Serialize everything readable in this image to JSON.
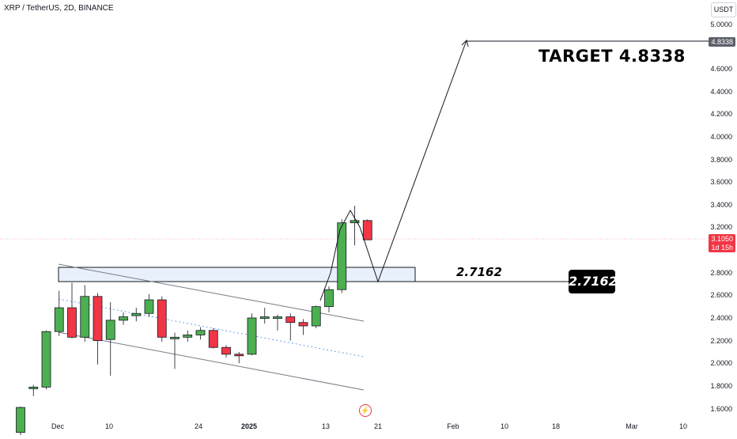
{
  "header": {
    "symbol_title": "XRP / TetherUS, 2D, BINANCE",
    "currency_label": "USDT"
  },
  "price_axis": {
    "ticks": [
      "5.0000",
      "4.6000",
      "4.4000",
      "4.2000",
      "4.0000",
      "3.8000",
      "3.6000",
      "3.4000",
      "3.2000",
      "2.8000",
      "2.6000",
      "2.4000",
      "2.2000",
      "2.0000",
      "1.8000",
      "1.6000"
    ],
    "target_tag": "4.8338",
    "current_price_tag": "3.1050",
    "countdown_tag": "1d 15h"
  },
  "time_axis": {
    "labels": [
      "Dec",
      "10",
      "24",
      "2025",
      "13",
      "21",
      "Feb",
      "10",
      "18",
      "Mar",
      "10"
    ]
  },
  "annotations": {
    "target_text": "TARGET 4.8338",
    "level_label": "2.7162",
    "level_box": "2.7162"
  },
  "colors": {
    "up": "#4caf50",
    "down": "#f23645",
    "outline": "#131722",
    "zone_fill": "#e8f0fc",
    "channel": "#787b86",
    "midline": "#64a0e8",
    "price_line": "#f23645"
  },
  "chart_data": {
    "type": "candlestick",
    "title": "XRP / TetherUS, 2D, BINANCE",
    "y_unit": "USDT",
    "ylim": [
      1.55,
      5.2
    ],
    "candles": [
      {
        "date": "Nov 24",
        "open": 1.4,
        "high": 1.63,
        "low": 1.35,
        "close": 1.62
      },
      {
        "date": "Nov 26",
        "open": 1.8,
        "high": 1.82,
        "low": 1.72,
        "close": 1.8
      },
      {
        "date": "Nov 28",
        "open": 1.8,
        "high": 2.3,
        "low": 1.78,
        "close": 2.29
      },
      {
        "date": "Nov 30",
        "open": 2.29,
        "high": 2.65,
        "low": 2.25,
        "close": 2.5
      },
      {
        "date": "Dec 2",
        "open": 2.5,
        "high": 2.72,
        "low": 2.23,
        "close": 2.24
      },
      {
        "date": "Dec 4",
        "open": 2.24,
        "high": 2.7,
        "low": 2.2,
        "close": 2.6
      },
      {
        "date": "Dec 6",
        "open": 2.6,
        "high": 2.63,
        "low": 2.0,
        "close": 2.21
      },
      {
        "date": "Dec 8",
        "open": 2.22,
        "high": 2.55,
        "low": 1.9,
        "close": 2.39
      },
      {
        "date": "Dec 10",
        "open": 2.39,
        "high": 2.46,
        "low": 2.35,
        "close": 2.42
      },
      {
        "date": "Dec 12",
        "open": 2.43,
        "high": 2.5,
        "low": 2.38,
        "close": 2.45
      },
      {
        "date": "Dec 14",
        "open": 2.45,
        "high": 2.62,
        "low": 2.42,
        "close": 2.57
      },
      {
        "date": "Dec 16",
        "open": 2.57,
        "high": 2.6,
        "low": 2.2,
        "close": 2.24
      },
      {
        "date": "Dec 18",
        "open": 2.24,
        "high": 2.28,
        "low": 1.96,
        "close": 2.24
      },
      {
        "date": "Dec 20",
        "open": 2.24,
        "high": 2.3,
        "low": 2.2,
        "close": 2.26
      },
      {
        "date": "Dec 22",
        "open": 2.26,
        "high": 2.33,
        "low": 2.22,
        "close": 2.3
      },
      {
        "date": "Dec 24",
        "open": 2.3,
        "high": 2.32,
        "low": 2.14,
        "close": 2.15
      },
      {
        "date": "Dec 26",
        "open": 2.15,
        "high": 2.17,
        "low": 2.06,
        "close": 2.09
      },
      {
        "date": "Dec 28",
        "open": 2.09,
        "high": 2.11,
        "low": 2.01,
        "close": 2.08
      },
      {
        "date": "Dec 30",
        "open": 2.09,
        "high": 2.45,
        "low": 2.08,
        "close": 2.41
      },
      {
        "date": "Jan 1",
        "open": 2.41,
        "high": 2.5,
        "low": 2.36,
        "close": 2.42
      },
      {
        "date": "Jan 3",
        "open": 2.42,
        "high": 2.44,
        "low": 2.3,
        "close": 2.42
      },
      {
        "date": "Jan 5",
        "open": 2.42,
        "high": 2.45,
        "low": 2.21,
        "close": 2.37
      },
      {
        "date": "Jan 7",
        "open": 2.37,
        "high": 2.4,
        "low": 2.26,
        "close": 2.34
      },
      {
        "date": "Jan 9",
        "open": 2.34,
        "high": 2.52,
        "low": 2.32,
        "close": 2.51
      },
      {
        "date": "Jan 11",
        "open": 2.51,
        "high": 2.69,
        "low": 2.46,
        "close": 2.66
      },
      {
        "date": "Jan 13",
        "open": 2.66,
        "high": 3.28,
        "low": 2.63,
        "close": 3.25
      },
      {
        "date": "Jan 15",
        "open": 3.25,
        "high": 3.4,
        "low": 3.05,
        "close": 3.27
      },
      {
        "date": "Jan 17",
        "open": 3.27,
        "high": 3.28,
        "low": 3.1,
        "close": 3.1
      }
    ],
    "annotations": {
      "target": 4.8338,
      "support_level": 2.7162,
      "current_price": 3.105
    }
  }
}
